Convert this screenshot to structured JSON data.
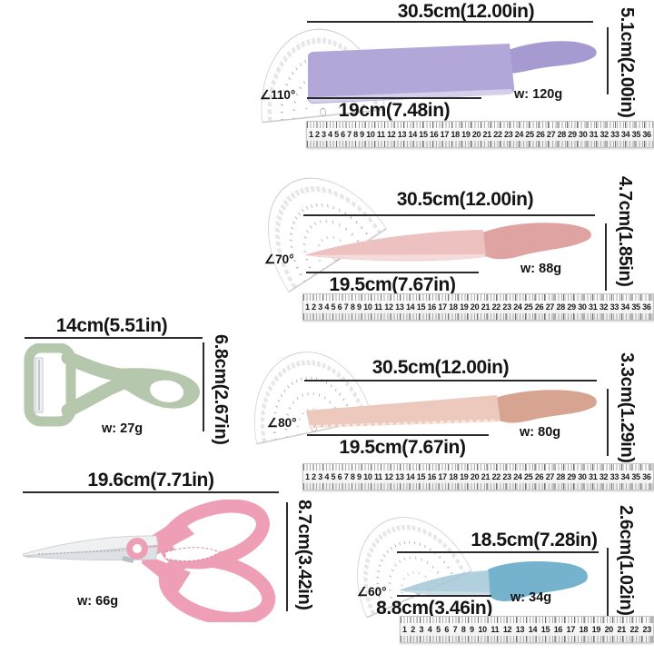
{
  "image_type": "kitchen-knife-set-measurement-infographic",
  "colors": {
    "text": "#141414",
    "cleaver_blade": "#b3a7da",
    "cleaver_handle": "#a69ad0",
    "chef_blade": "#eec1c1",
    "chef_handle": "#dfa4a1",
    "bread_blade": "#edc9bd",
    "bread_handle": "#d8a492",
    "paring_blade": "#a3c8d8",
    "paring_handle": "#74b2cd",
    "peeler_body": "#b5c8ad",
    "scissors_handle": "#ee9fb5",
    "scissors_blade": "#e6eaed"
  },
  "sections": {
    "cleaver": {
      "length": "30.5cm(12.00in)",
      "blade": "19cm(7.48in)",
      "height": "5.1cm(2.00in)",
      "angle": "∠110°",
      "weight": "w: 120g"
    },
    "chef": {
      "length": "30.5cm(12.00in)",
      "blade": "19.5cm(7.67in)",
      "height": "4.7cm(1.85in)",
      "angle": "∠70°",
      "weight": "w: 88g"
    },
    "peeler": {
      "length": "14cm(5.51in)",
      "height": "6.8cm(2.67in)",
      "weight": "w: 27g"
    },
    "bread": {
      "length": "30.5cm(12.00in)",
      "blade": "19.5cm(7.67in)",
      "height": "3.3cm(1.29in)",
      "angle": "∠80°",
      "weight": "w: 80g"
    },
    "scissors": {
      "length": "19.6cm(7.71in)",
      "height": "8.7cm(3.42in)",
      "weight": "w: 66g"
    },
    "paring": {
      "length": "18.5cm(7.28in)",
      "blade": "8.8cm(3.46in)",
      "height": "2.6cm(1.02in)",
      "angle": "∠60°",
      "weight": "w: 34g"
    }
  },
  "rulers": {
    "long": [
      "1",
      "2",
      "3",
      "4",
      "5",
      "6",
      "7",
      "8",
      "9",
      "10",
      "11",
      "12",
      "13",
      "14",
      "15",
      "16",
      "17",
      "18",
      "19",
      "20",
      "21",
      "22",
      "23",
      "24",
      "25",
      "26",
      "27",
      "28",
      "29",
      "30",
      "31",
      "32",
      "33",
      "34",
      "35",
      "36"
    ],
    "short": [
      "1",
      "2",
      "3",
      "4",
      "5",
      "6",
      "7",
      "8",
      "9",
      "10",
      "11",
      "12",
      "13",
      "14",
      "15",
      "16",
      "17",
      "18",
      "19",
      "20",
      "21",
      "22",
      "23"
    ]
  }
}
